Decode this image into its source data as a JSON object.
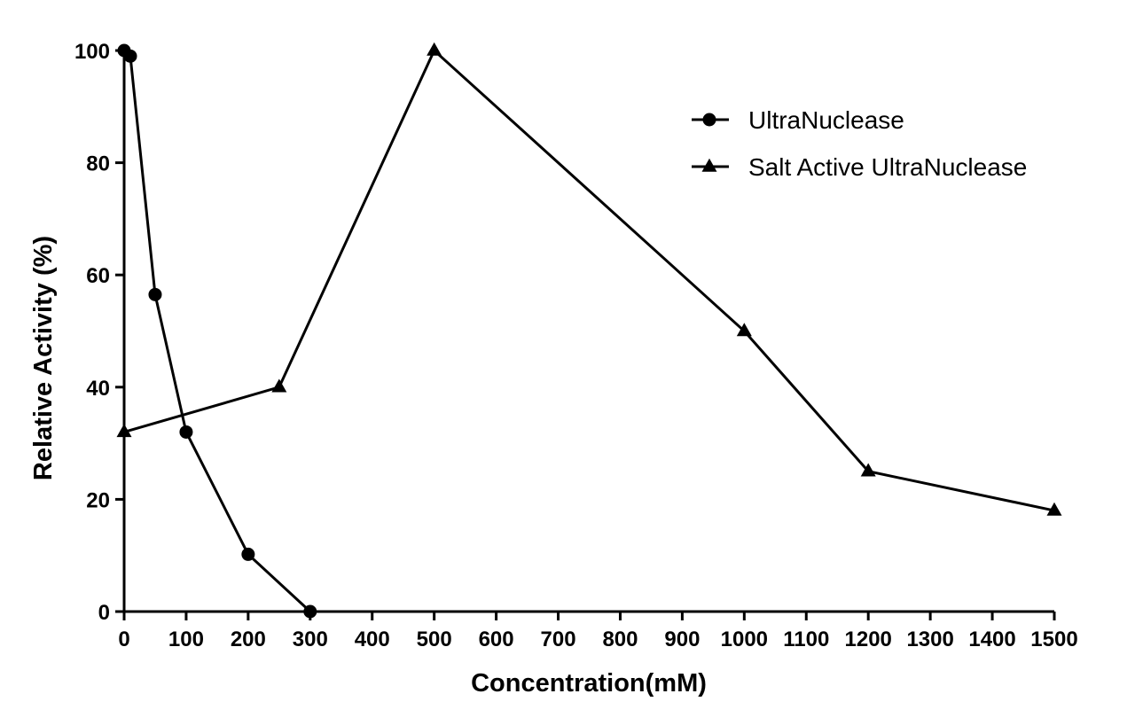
{
  "chart_data": {
    "type": "line",
    "title": "",
    "xlabel": "Concentration(mM)",
    "ylabel": "Relative Activity (%)",
    "xlim": [
      0,
      1500
    ],
    "ylim": [
      0,
      100
    ],
    "xticks": [
      "0",
      "100",
      "200",
      "300",
      "400",
      "500",
      "600",
      "700",
      "800",
      "900",
      "1000",
      "1100",
      "1200",
      "1300",
      "1400",
      "1500"
    ],
    "yticks": [
      "0",
      "20",
      "40",
      "60",
      "80",
      "100"
    ],
    "grid": false,
    "legend_position": "top-right",
    "series": [
      {
        "name": "UltraNuclease",
        "marker": "circle",
        "color": "#000000",
        "x": [
          0,
          10,
          50,
          100,
          200,
          300
        ],
        "y": [
          100,
          99,
          56.5,
          32,
          10.2,
          0
        ]
      },
      {
        "name": "Salt Active UltraNuclease",
        "marker": "triangle",
        "color": "#000000",
        "x": [
          0,
          250,
          500,
          1000,
          1200,
          1500
        ],
        "y": [
          32,
          40,
          100,
          50,
          25,
          18
        ]
      }
    ]
  }
}
